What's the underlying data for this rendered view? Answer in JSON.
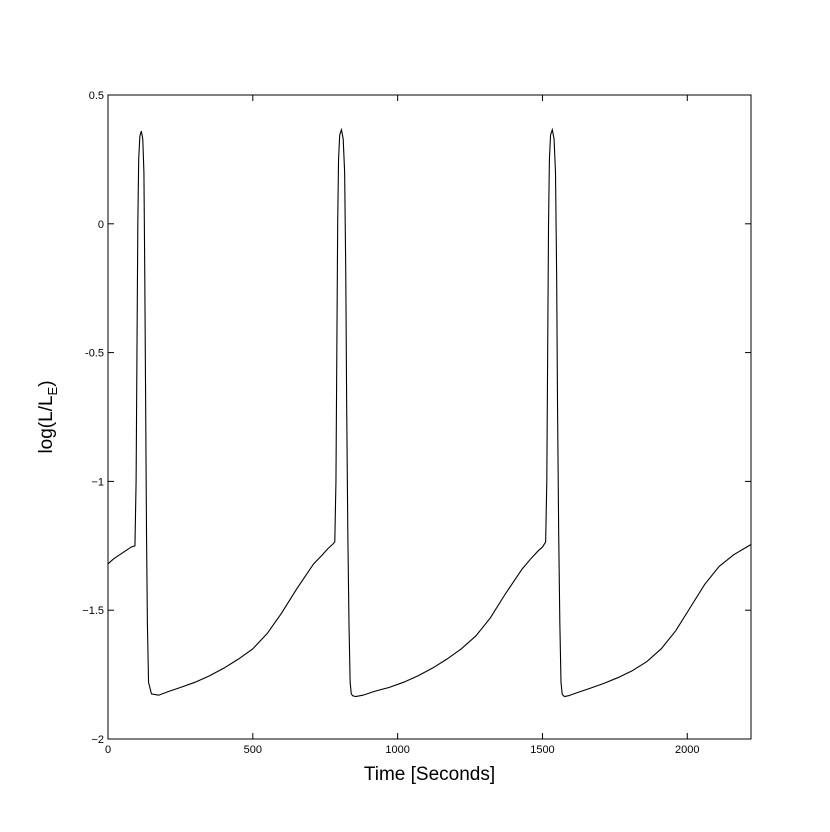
{
  "chart_data": {
    "type": "line",
    "title": "",
    "xlabel": "Time [Seconds]",
    "ylabel_main": "log(L/L",
    "ylabel_sub": "E",
    "ylabel_close": ")",
    "xlim": [
      0,
      2220
    ],
    "ylim": [
      -2,
      0.5
    ],
    "xticks": [
      0,
      500,
      1000,
      1500,
      2000
    ],
    "xtick_labels": [
      "0",
      "500",
      "1000",
      "1500",
      "2000"
    ],
    "yticks": [
      0.5,
      0,
      -0.5,
      -1,
      -1.5,
      -2
    ],
    "ytick_labels": [
      "0.5",
      "0",
      "-0.5",
      "−1",
      "−1.5",
      "−2"
    ],
    "grid": false,
    "line_color": "#000000",
    "series": [
      {
        "x": [
          0,
          20,
          40,
          60,
          80,
          93,
          97,
          100,
          103,
          106,
          110,
          115,
          120,
          124,
          127,
          130,
          133,
          136,
          140,
          150,
          175,
          210,
          250,
          300,
          350,
          400,
          450,
          500,
          550,
          600,
          650,
          680,
          710,
          740,
          760,
          775,
          783,
          787,
          790,
          793,
          796,
          800,
          806,
          812,
          817,
          821,
          824,
          828,
          832,
          836,
          840,
          845,
          855,
          880,
          920,
          970,
          1020,
          1070,
          1120,
          1170,
          1220,
          1270,
          1320,
          1370,
          1400,
          1430,
          1460,
          1485,
          1500,
          1511,
          1515,
          1518,
          1521,
          1524,
          1528,
          1534,
          1540,
          1545,
          1549,
          1552,
          1556,
          1560,
          1564,
          1568,
          1572,
          1577,
          1590,
          1620,
          1660,
          1710,
          1760,
          1810,
          1860,
          1910,
          1960,
          2010,
          2060,
          2110,
          2160,
          2220
        ],
        "y": [
          -1.32,
          -1.3,
          -1.285,
          -1.27,
          -1.255,
          -1.25,
          -1.0,
          -0.5,
          0.0,
          0.25,
          0.34,
          0.36,
          0.33,
          0.2,
          -0.2,
          -0.7,
          -1.2,
          -1.55,
          -1.78,
          -1.825,
          -1.83,
          -1.815,
          -1.8,
          -1.78,
          -1.755,
          -1.725,
          -1.69,
          -1.65,
          -1.59,
          -1.51,
          -1.42,
          -1.37,
          -1.32,
          -1.285,
          -1.26,
          -1.245,
          -1.235,
          -1.0,
          -0.5,
          0.0,
          0.25,
          0.345,
          0.365,
          0.33,
          0.2,
          -0.2,
          -0.7,
          -1.2,
          -1.55,
          -1.78,
          -1.825,
          -1.832,
          -1.835,
          -1.83,
          -1.815,
          -1.8,
          -1.78,
          -1.755,
          -1.725,
          -1.69,
          -1.65,
          -1.6,
          -1.53,
          -1.44,
          -1.39,
          -1.34,
          -1.3,
          -1.27,
          -1.255,
          -1.235,
          -1.0,
          -0.5,
          0.0,
          0.25,
          0.345,
          0.365,
          0.33,
          0.2,
          -0.2,
          -0.7,
          -1.2,
          -1.55,
          -1.78,
          -1.825,
          -1.832,
          -1.835,
          -1.832,
          -1.82,
          -1.805,
          -1.785,
          -1.762,
          -1.735,
          -1.7,
          -1.65,
          -1.58,
          -1.49,
          -1.4,
          -1.33,
          -1.285,
          -1.245
        ]
      }
    ]
  }
}
